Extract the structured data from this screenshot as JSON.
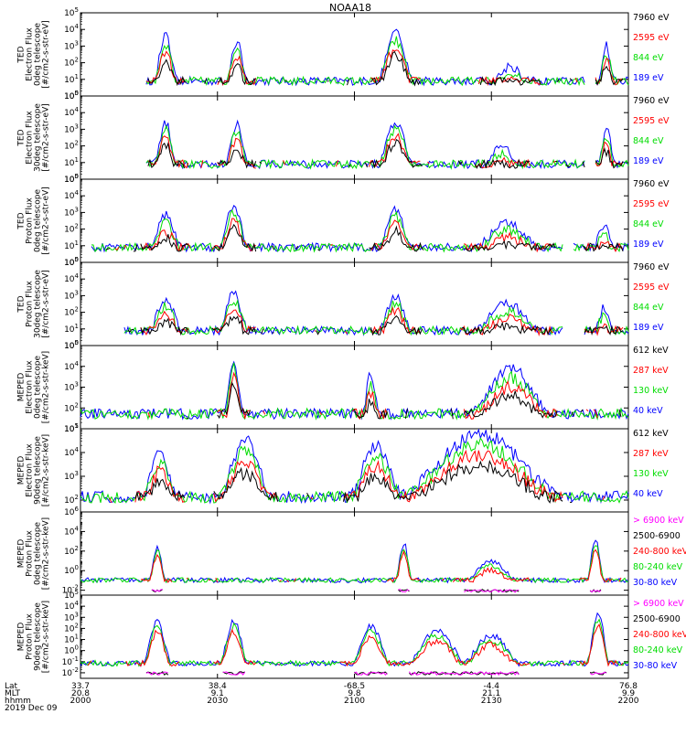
{
  "title": "NOAA18",
  "footer": {
    "row_labels": [
      "Lat",
      "MLT",
      "hhmm",
      "2019 Dec 09"
    ],
    "ticks": [
      {
        "lat": "33.7",
        "mlt": "20.8",
        "hhmm": "2000"
      },
      {
        "lat": "38.4",
        "mlt": "9.1",
        "hhmm": "2030"
      },
      {
        "lat": "-68.5",
        "mlt": "9.8",
        "hhmm": "2100"
      },
      {
        "lat": "-4.4",
        "mlt": "21.1",
        "hhmm": "2130"
      },
      {
        "lat": "76.8",
        "mlt": "9.9",
        "hhmm": "2200"
      }
    ]
  },
  "colors": {
    "black": "#000000",
    "red": "#ff0000",
    "green": "#00dd00",
    "blue": "#0000ff",
    "magenta": "#ff00ff"
  },
  "chart_data": {
    "type": "line",
    "x_axis": {
      "label": "hhmm",
      "range": [
        "2000",
        "2200"
      ],
      "ticks": [
        "2000",
        "2030",
        "2100",
        "2130",
        "2200"
      ]
    },
    "panels": [
      {
        "ylabel": [
          "TED",
          "Electron Flux",
          "0deg telescope",
          "[#/cm2-s-str-eV]"
        ],
        "yscale": "log",
        "yticks": [
          "10^0",
          "10^1",
          "10^2",
          "10^3",
          "10^4",
          "10^5"
        ],
        "ylim": [
          0,
          5
        ],
        "legend": [
          {
            "name": "7960 eV",
            "color": "black"
          },
          {
            "name": "2595 eV",
            "color": "red"
          },
          {
            "name": "844 eV",
            "color": "green"
          },
          {
            "name": "189 eV",
            "color": "blue"
          }
        ],
        "events": [
          [
            0.14,
            0.17,
            3.6
          ],
          [
            0.27,
            0.3,
            3.2
          ],
          [
            0.55,
            0.6,
            3.8
          ],
          [
            0.75,
            0.82,
            1.8
          ],
          [
            0.95,
            0.97,
            3.0
          ]
        ],
        "coverage": [
          [
            0.12,
            0.92
          ],
          [
            0.94,
            1.0
          ]
        ]
      },
      {
        "ylabel": [
          "TED",
          "Electron Flux",
          "30deg telescope",
          "[#/cm2-s-str-eV]"
        ],
        "yscale": "log",
        "yticks": [
          "10^0",
          "10^1",
          "10^2",
          "10^3",
          "10^4",
          "10^5"
        ],
        "ylim": [
          0,
          5
        ],
        "legend": [
          {
            "name": "7960 eV",
            "color": "black"
          },
          {
            "name": "2595 eV",
            "color": "red"
          },
          {
            "name": "844 eV",
            "color": "green"
          },
          {
            "name": "189 eV",
            "color": "blue"
          }
        ],
        "events": [
          [
            0.14,
            0.17,
            3.4
          ],
          [
            0.27,
            0.3,
            3.3
          ],
          [
            0.55,
            0.6,
            3.5
          ],
          [
            0.74,
            0.8,
            2.0
          ],
          [
            0.95,
            0.97,
            3.0
          ]
        ],
        "coverage": [
          [
            0.12,
            0.92
          ],
          [
            0.94,
            1.0
          ]
        ]
      },
      {
        "ylabel": [
          "TED",
          "Proton Flux",
          "0deg telescope",
          "[#/cm2-s-str-eV]"
        ],
        "yscale": "log",
        "yticks": [
          "10^0",
          "10^1",
          "10^2",
          "10^3",
          "10^4",
          "10^5"
        ],
        "ylim": [
          0,
          5
        ],
        "legend": [
          {
            "name": "7960 eV",
            "color": "black"
          },
          {
            "name": "2595 eV",
            "color": "red"
          },
          {
            "name": "844 eV",
            "color": "green"
          },
          {
            "name": "189 eV",
            "color": "blue"
          }
        ],
        "events": [
          [
            0.13,
            0.18,
            2.8
          ],
          [
            0.26,
            0.3,
            3.4
          ],
          [
            0.55,
            0.6,
            3.2
          ],
          [
            0.72,
            0.84,
            2.4
          ],
          [
            0.94,
            0.97,
            2.3
          ]
        ],
        "coverage": [
          [
            0.02,
            0.88
          ],
          [
            0.9,
            1.0
          ]
        ]
      },
      {
        "ylabel": [
          "TED",
          "Proton Flux",
          "30deg telescope",
          "[#/cm2-s-str-eV]"
        ],
        "yscale": "log",
        "yticks": [
          "10^0",
          "10^1",
          "10^2",
          "10^3",
          "10^4",
          "10^5"
        ],
        "ylim": [
          0,
          5
        ],
        "legend": [
          {
            "name": "7960 eV",
            "color": "black"
          },
          {
            "name": "2595 eV",
            "color": "red"
          },
          {
            "name": "844 eV",
            "color": "green"
          },
          {
            "name": "189 eV",
            "color": "blue"
          }
        ],
        "events": [
          [
            0.13,
            0.18,
            2.8
          ],
          [
            0.26,
            0.3,
            3.2
          ],
          [
            0.55,
            0.6,
            3.0
          ],
          [
            0.72,
            0.84,
            2.5
          ],
          [
            0.94,
            0.97,
            2.2
          ]
        ],
        "coverage": [
          [
            0.08,
            0.88
          ],
          [
            0.92,
            1.0
          ]
        ]
      },
      {
        "ylabel": [
          "MEPED",
          "Electron Flux",
          "0deg telescope",
          "[#/cm2-s-str-keV]"
        ],
        "yscale": "log",
        "yticks": [
          "10^1",
          "10^2",
          "10^3",
          "10^4",
          "10^5"
        ],
        "ylim": [
          1,
          5
        ],
        "legend": [
          {
            "name": "612 keV",
            "color": "black"
          },
          {
            "name": "287 keV",
            "color": "red"
          },
          {
            "name": "130 keV",
            "color": "green"
          },
          {
            "name": "40 keV",
            "color": "blue"
          }
        ],
        "events": [
          [
            0.27,
            0.29,
            4.4
          ],
          [
            0.52,
            0.54,
            3.6
          ],
          [
            0.72,
            0.85,
            3.9
          ]
        ],
        "coverage": [
          [
            0.0,
            1.0
          ]
        ]
      },
      {
        "ylabel": [
          "MEPED",
          "Electron Flux",
          "90deg telescope",
          "[#/cm2-s-str-keV]"
        ],
        "yscale": "log",
        "yticks": [
          "10^2",
          "10^3",
          "10^4",
          "10^5"
        ],
        "ylim": [
          1.5,
          5
        ],
        "legend": [
          {
            "name": "612 keV",
            "color": "black"
          },
          {
            "name": "287 keV",
            "color": "red"
          },
          {
            "name": "130 keV",
            "color": "green"
          },
          {
            "name": "40 keV",
            "color": "blue"
          }
        ],
        "events": [
          [
            0.12,
            0.17,
            4.1
          ],
          [
            0.26,
            0.34,
            4.5
          ],
          [
            0.5,
            0.58,
            4.3
          ],
          [
            0.6,
            0.86,
            4.8
          ]
        ],
        "coverage": [
          [
            0.0,
            1.0
          ]
        ]
      },
      {
        "ylabel": [
          "MEPED",
          "Proton Flux",
          "0deg telescope",
          "[#/cm2-s-str-keV]"
        ],
        "yscale": "log",
        "yticks": [
          "10^-2",
          "10^0",
          "10^2",
          "10^4",
          "10^6"
        ],
        "ylim": [
          -2.5,
          6
        ],
        "legend": [
          {
            "name": "> 6900 keV",
            "color": "magenta"
          },
          {
            "name": "2500-6900",
            "color": "black"
          },
          {
            "name": "240-800 keV",
            "color": "red"
          },
          {
            "name": "80-240 keV",
            "color": "green"
          },
          {
            "name": "30-80 keV",
            "color": "blue"
          }
        ],
        "events": [
          [
            0.13,
            0.15,
            2.5
          ],
          [
            0.58,
            0.6,
            2.8
          ],
          [
            0.7,
            0.8,
            1.0
          ],
          [
            0.93,
            0.95,
            3.1
          ]
        ],
        "coverage": [
          [
            0.0,
            1.0
          ]
        ]
      },
      {
        "ylabel": [
          "MEPED",
          "Proton Flux",
          "90deg telescope",
          "[#/cm2-s-str-keV]"
        ],
        "yscale": "log",
        "yticks": [
          "10^-2",
          "10^-1",
          "10^0",
          "10^1",
          "10^2",
          "10^3",
          "10^4",
          "10^5"
        ],
        "ylim": [
          -2.5,
          5
        ],
        "legend": [
          {
            "name": "> 6900 keV",
            "color": "magenta"
          },
          {
            "name": "2500-6900",
            "color": "black"
          },
          {
            "name": "240-800 keV",
            "color": "red"
          },
          {
            "name": "80-240 keV",
            "color": "green"
          },
          {
            "name": "30-80 keV",
            "color": "blue"
          }
        ],
        "events": [
          [
            0.12,
            0.16,
            2.6
          ],
          [
            0.26,
            0.3,
            2.6
          ],
          [
            0.5,
            0.56,
            2.2
          ],
          [
            0.6,
            0.7,
            1.8
          ],
          [
            0.7,
            0.8,
            1.4
          ],
          [
            0.93,
            0.96,
            3.2
          ]
        ],
        "coverage": [
          [
            0.0,
            1.0
          ]
        ]
      }
    ]
  }
}
